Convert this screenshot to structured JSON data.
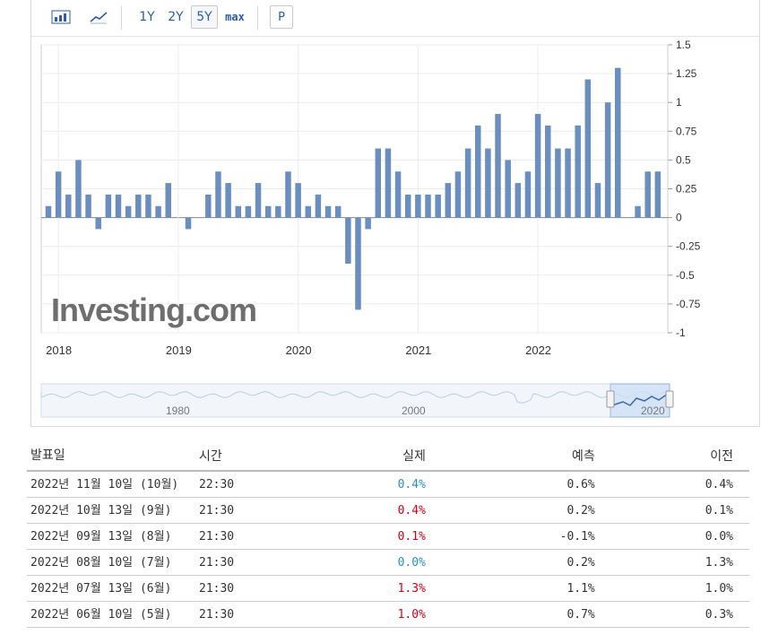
{
  "toolbar": {
    "bar_chart_icon": "bar-chart-icon",
    "line_chart_icon": "line-chart-icon",
    "ranges": [
      "1Y",
      "2Y",
      "5Y",
      "max"
    ],
    "selected_range": "5Y",
    "p_label": "P"
  },
  "chart_data": {
    "type": "bar",
    "y_ticks": [
      "1.5",
      "1.25",
      "1",
      "0.75",
      "0.5",
      "0.25",
      "0",
      "-0.25",
      "-0.5",
      "-0.75",
      "-1"
    ],
    "ylim": [
      -1,
      1.5
    ],
    "x_ticks": [
      "2018",
      "2019",
      "2020",
      "2021",
      "2022"
    ],
    "grid": true,
    "bar_color": "#6a8fbf",
    "values": [
      0.1,
      0.4,
      0.2,
      0.5,
      0.2,
      -0.1,
      0.2,
      0.2,
      0.1,
      0.2,
      0.2,
      0.1,
      0.3,
      0,
      -0.1,
      0,
      0.2,
      0.4,
      0.3,
      0.1,
      0.1,
      0.3,
      0.1,
      0.1,
      0.4,
      0.3,
      0.1,
      0.2,
      0.1,
      0.1,
      -0.4,
      -0.8,
      -0.1,
      0.6,
      0.6,
      0.4,
      0.2,
      0.2,
      0.2,
      0.2,
      0.3,
      0.4,
      0.6,
      0.8,
      0.6,
      0.9,
      0.5,
      0.3,
      0.4,
      0.9,
      0.8,
      0.6,
      0.6,
      0.8,
      1.2,
      0.3,
      1.0,
      1.3,
      0.0,
      0.1,
      0.4,
      0.4
    ],
    "watermark": "Investing.com"
  },
  "navigator": {
    "labels": [
      "1980",
      "2000",
      "2020"
    ]
  },
  "table": {
    "headers": {
      "date": "발표일",
      "time": "시간",
      "actual": "실제",
      "forecast": "예측",
      "previous": "이전"
    },
    "rows": [
      {
        "date": "2022년 11월 10일 (10월)",
        "time": "22:30",
        "actual": "0.4%",
        "actual_color": "blue",
        "forecast": "0.6%",
        "previous": "0.4%"
      },
      {
        "date": "2022년 10월 13일 (9월)",
        "time": "21:30",
        "actual": "0.4%",
        "actual_color": "red",
        "forecast": "0.2%",
        "previous": "0.1%"
      },
      {
        "date": "2022년 09월 13일 (8월)",
        "time": "21:30",
        "actual": "0.1%",
        "actual_color": "red",
        "forecast": "-0.1%",
        "previous": "0.0%"
      },
      {
        "date": "2022년 08월 10일 (7월)",
        "time": "21:30",
        "actual": "0.0%",
        "actual_color": "blue",
        "forecast": "0.2%",
        "previous": "1.3%"
      },
      {
        "date": "2022년 07월 13일 (6월)",
        "time": "21:30",
        "actual": "1.3%",
        "actual_color": "red",
        "forecast": "1.1%",
        "previous": "1.0%"
      },
      {
        "date": "2022년 06월 10일 (5월)",
        "time": "21:30",
        "actual": "1.0%",
        "actual_color": "red",
        "forecast": "0.7%",
        "previous": "0.3%"
      }
    ]
  }
}
